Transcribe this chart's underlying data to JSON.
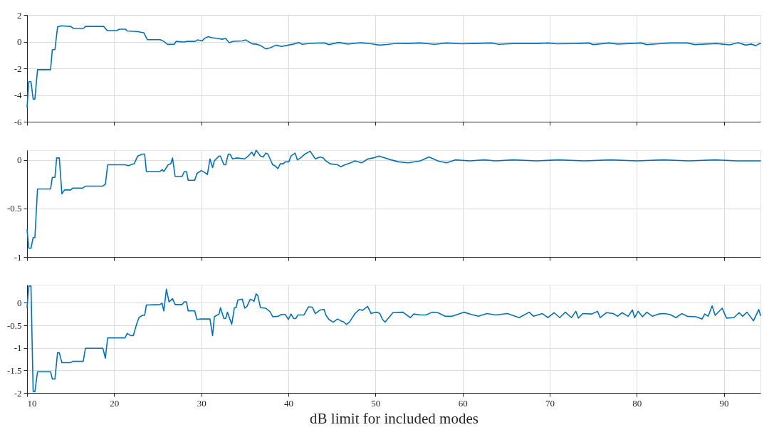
{
  "chart_data": [
    {
      "type": "line",
      "xlim": [
        10,
        94.2
      ],
      "xticks": [
        10,
        20,
        30,
        40,
        50,
        60,
        70,
        80,
        90
      ],
      "ylim": [
        -6,
        2
      ],
      "yticks": [
        -6,
        -4,
        -2,
        0,
        2
      ],
      "grid": true,
      "tick_labels": "y",
      "series": [
        {
          "color": "#0072bd",
          "x": [
            10.0,
            10.2,
            10.45,
            10.7,
            10.9,
            11.2,
            12.7,
            12.9,
            13.2,
            13.5,
            13.9,
            15.0,
            15.3,
            16.5,
            16.7,
            18.8,
            19.2,
            20.3,
            20.6,
            21.3,
            21.5,
            22.6,
            23.4,
            23.8,
            25.3,
            25.7,
            26.1,
            26.9,
            27.1,
            28.0,
            28.4,
            29.3,
            29.6,
            30.1,
            30.4,
            30.8,
            31.2,
            31.9,
            32.4,
            32.8,
            33.2,
            33.7,
            34.7,
            35.1,
            35.6,
            35.9,
            36.3,
            36.8,
            37.4,
            37.9,
            38.6,
            39.2,
            40.0,
            40.6,
            41.2,
            41.6,
            42.3,
            43.3,
            44.15,
            44.65,
            45.8,
            46.8,
            48.3,
            49.5,
            50.5,
            51.5,
            52.5,
            53.5,
            55.15,
            56.8,
            58.15,
            59.8,
            61.15,
            63.3,
            64.15,
            65.8,
            68.5,
            69.8,
            70.8,
            73.15,
            74.5,
            75.0,
            76.8,
            77.8,
            79.15,
            80.5,
            81.15,
            82.5,
            83.8,
            85.8,
            86.65,
            89.15,
            90.65,
            91.65,
            92.5,
            93.15,
            93.65,
            94.0,
            94.2
          ],
          "values": [
            -4.9,
            -3.0,
            -3.0,
            -4.3,
            -4.3,
            -2.1,
            -2.1,
            -0.6,
            -0.6,
            1.1,
            1.19,
            1.14,
            1.0,
            1.0,
            1.14,
            1.14,
            0.83,
            0.83,
            0.93,
            0.93,
            0.8,
            0.76,
            0.67,
            0.15,
            0.15,
            0.02,
            -0.2,
            -0.2,
            0.02,
            -0.03,
            0.02,
            0.02,
            0.13,
            0.05,
            0.26,
            0.37,
            0.29,
            0.24,
            0.18,
            0.24,
            -0.08,
            0.03,
            0.05,
            0.13,
            -0.07,
            -0.18,
            -0.18,
            -0.29,
            -0.54,
            -0.47,
            -0.26,
            -0.36,
            -0.26,
            -0.18,
            -0.07,
            -0.2,
            -0.15,
            -0.11,
            -0.1,
            -0.22,
            -0.06,
            -0.18,
            -0.08,
            -0.16,
            -0.26,
            -0.2,
            -0.12,
            -0.14,
            -0.1,
            -0.2,
            -0.1,
            -0.16,
            -0.14,
            -0.1,
            -0.2,
            -0.14,
            -0.14,
            -0.1,
            -0.16,
            -0.14,
            -0.1,
            -0.22,
            -0.1,
            -0.18,
            -0.14,
            -0.1,
            -0.22,
            -0.16,
            -0.1,
            -0.1,
            -0.22,
            -0.14,
            -0.24,
            -0.08,
            -0.26,
            -0.18,
            -0.3,
            -0.18,
            -0.14
          ]
        }
      ]
    },
    {
      "type": "line",
      "xlim": [
        10,
        94.2
      ],
      "xticks": [
        10,
        20,
        30,
        40,
        50,
        60,
        70,
        80,
        90
      ],
      "ylim": [
        -1,
        0.1
      ],
      "yticks": [
        -1,
        -0.5,
        0
      ],
      "grid": true,
      "tick_labels": "y",
      "series": [
        {
          "color": "#0072bd",
          "x": [
            10.0,
            10.2,
            10.45,
            10.7,
            10.9,
            11.2,
            12.7,
            12.9,
            13.2,
            13.4,
            13.7,
            14.0,
            14.3,
            15.0,
            15.25,
            16.4,
            16.7,
            18.7,
            19.0,
            19.25,
            21.25,
            21.65,
            21.9,
            22.3,
            22.7,
            23.0,
            23.2,
            23.5,
            23.7,
            25.25,
            25.5,
            25.7,
            26.2,
            26.5,
            26.7,
            27.0,
            27.8,
            28.05,
            28.3,
            28.5,
            29.25,
            29.5,
            30.0,
            30.4,
            30.7,
            31.0,
            31.3,
            31.5,
            32.05,
            32.2,
            32.6,
            32.8,
            33.1,
            33.3,
            33.6,
            34.05,
            35.0,
            35.5,
            35.8,
            36.05,
            36.3,
            36.8,
            37.1,
            37.4,
            37.65,
            38.2,
            38.45,
            38.8,
            39.07,
            39.4,
            39.65,
            40.05,
            40.3,
            40.77,
            41.04,
            41.4,
            41.9,
            42.5,
            43.1,
            43.65,
            44.0,
            44.3,
            44.8,
            45.65,
            46.0,
            46.5,
            47.15,
            47.65,
            48.4,
            49.15,
            49.75,
            50.4,
            51.1,
            51.8,
            52.65,
            53.75,
            55.15,
            56.15,
            57.15,
            58.15,
            59.15,
            60.8,
            62.5,
            63.8,
            65.8,
            68.5,
            71.0,
            74.0,
            77.0,
            80.0,
            83.0,
            86.0,
            89.0,
            91.5,
            94.2
          ],
          "values": [
            -0.72,
            -0.91,
            -0.91,
            -0.8,
            -0.8,
            -0.3,
            -0.3,
            -0.18,
            -0.18,
            0.02,
            0.02,
            -0.35,
            -0.31,
            -0.31,
            -0.29,
            -0.29,
            -0.27,
            -0.27,
            -0.25,
            -0.05,
            -0.05,
            -0.06,
            -0.05,
            -0.04,
            0.04,
            0.05,
            0.06,
            0.06,
            -0.12,
            -0.12,
            -0.1,
            -0.12,
            -0.05,
            -0.04,
            0.02,
            -0.17,
            -0.17,
            -0.12,
            -0.12,
            -0.21,
            -0.21,
            -0.14,
            -0.11,
            -0.13,
            -0.15,
            0.01,
            -0.08,
            -0.01,
            0.04,
            0.04,
            -0.05,
            -0.05,
            0.06,
            0.06,
            0.01,
            0.02,
            0.01,
            0.05,
            0.08,
            0.04,
            0.1,
            0.04,
            0.03,
            0.07,
            0.06,
            -0.05,
            -0.06,
            -0.09,
            -0.04,
            -0.04,
            -0.02,
            -0.02,
            0.04,
            0.07,
            0.0,
            0.02,
            0.06,
            0.09,
            0.01,
            0.03,
            0.02,
            -0.01,
            -0.04,
            -0.05,
            -0.07,
            -0.05,
            -0.03,
            -0.01,
            -0.03,
            0.01,
            0.02,
            0.04,
            0.02,
            0.0,
            -0.02,
            -0.03,
            -0.01,
            0.03,
            -0.01,
            -0.03,
            0.0,
            -0.01,
            0.0,
            -0.01,
            0.0,
            -0.01,
            0.0,
            -0.01,
            0.0,
            -0.01,
            0.0,
            -0.01,
            0.0,
            -0.01,
            -0.01
          ]
        }
      ]
    },
    {
      "type": "line",
      "xlim": [
        10,
        94.2
      ],
      "xticks": [
        10,
        20,
        30,
        40,
        50,
        60,
        70,
        80,
        90
      ],
      "ylim": [
        -2,
        0.4
      ],
      "yticks": [
        -2,
        -1.5,
        -1,
        -0.5,
        0
      ],
      "grid": true,
      "xlabel": "dB limit for included modes",
      "series": [
        {
          "color": "#0072bd",
          "x": [
            10.0,
            10.2,
            10.45,
            10.7,
            10.9,
            11.2,
            12.7,
            12.9,
            13.2,
            13.5,
            13.7,
            14.0,
            15.0,
            15.25,
            16.45,
            16.7,
            18.7,
            18.99,
            19.25,
            21.25,
            21.5,
            21.9,
            22.2,
            22.6,
            22.85,
            23.2,
            23.5,
            23.7,
            25.25,
            25.5,
            25.7,
            26.0,
            26.3,
            26.7,
            27.0,
            27.8,
            28.05,
            28.3,
            28.5,
            29.25,
            29.5,
            30.0,
            31.0,
            31.3,
            31.5,
            32.05,
            32.2,
            32.6,
            32.8,
            33.0,
            33.5,
            33.8,
            34.0,
            34.2,
            34.7,
            35.0,
            35.25,
            35.6,
            35.9,
            36.05,
            36.3,
            36.5,
            36.8,
            37.4,
            37.9,
            38.2,
            38.85,
            39.2,
            39.65,
            40.0,
            40.3,
            40.6,
            40.85,
            41.1,
            41.8,
            42.3,
            42.75,
            43.1,
            43.65,
            44.1,
            44.3,
            44.65,
            45.15,
            45.65,
            46.0,
            46.3,
            46.65,
            47.0,
            47.65,
            48.15,
            48.5,
            49.1,
            49.5,
            49.8,
            50.2,
            50.5,
            50.8,
            51.1,
            52.0,
            53.15,
            54.0,
            54.4,
            55.15,
            55.8,
            56.5,
            57.15,
            58.0,
            58.8,
            60.15,
            61.0,
            61.8,
            62.8,
            63.8,
            65.15,
            66.5,
            67.65,
            68.15,
            69.15,
            69.8,
            70.5,
            71.15,
            71.8,
            72.5,
            73.0,
            73.3,
            73.8,
            74.8,
            75.5,
            75.8,
            76.5,
            77.3,
            77.8,
            78.3,
            79.0,
            79.5,
            79.75,
            80.15,
            80.65,
            81.15,
            81.8,
            82.5,
            83.15,
            83.8,
            84.5,
            85.15,
            85.8,
            86.8,
            87.5,
            87.8,
            88.2,
            88.65,
            89.0,
            89.8,
            90.3,
            91.15,
            91.75,
            92.15,
            92.65,
            93.4,
            94.0,
            94.2
          ],
          "values": [
            -0.11,
            0.37,
            0.37,
            -1.97,
            -1.97,
            -1.53,
            -1.53,
            -1.69,
            -1.69,
            -1.11,
            -1.11,
            -1.33,
            -1.33,
            -1.3,
            -1.3,
            -1.01,
            -1.01,
            -1.23,
            -0.78,
            -0.78,
            -0.68,
            -0.73,
            -0.73,
            -0.46,
            -0.33,
            -0.28,
            -0.28,
            -0.05,
            -0.04,
            -0.01,
            -0.18,
            0.3,
            0.02,
            0.09,
            -0.04,
            -0.04,
            0.02,
            0.02,
            -0.18,
            -0.18,
            -0.37,
            -0.36,
            -0.36,
            -0.73,
            -0.31,
            -0.25,
            -0.11,
            -0.35,
            -0.35,
            -0.21,
            -0.48,
            -0.11,
            -0.11,
            0.06,
            0.08,
            -0.12,
            -0.08,
            0.07,
            0.06,
            0.03,
            0.2,
            0.15,
            -0.11,
            -0.12,
            -0.2,
            -0.31,
            -0.3,
            -0.26,
            -0.26,
            -0.37,
            -0.25,
            -0.35,
            -0.35,
            -0.27,
            -0.27,
            -0.09,
            -0.1,
            -0.24,
            -0.16,
            -0.15,
            -0.27,
            -0.37,
            -0.43,
            -0.36,
            -0.4,
            -0.42,
            -0.48,
            -0.43,
            -0.24,
            -0.15,
            -0.17,
            -0.08,
            -0.24,
            -0.22,
            -0.21,
            -0.24,
            -0.37,
            -0.43,
            -0.22,
            -0.21,
            -0.33,
            -0.25,
            -0.27,
            -0.27,
            -0.21,
            -0.22,
            -0.3,
            -0.3,
            -0.21,
            -0.26,
            -0.3,
            -0.24,
            -0.27,
            -0.24,
            -0.33,
            -0.21,
            -0.3,
            -0.24,
            -0.33,
            -0.22,
            -0.33,
            -0.21,
            -0.33,
            -0.19,
            -0.34,
            -0.24,
            -0.25,
            -0.19,
            -0.33,
            -0.22,
            -0.24,
            -0.3,
            -0.22,
            -0.3,
            -0.16,
            -0.33,
            -0.19,
            -0.31,
            -0.21,
            -0.3,
            -0.25,
            -0.24,
            -0.26,
            -0.33,
            -0.24,
            -0.3,
            -0.31,
            -0.36,
            -0.25,
            -0.3,
            -0.07,
            -0.28,
            -0.12,
            -0.34,
            -0.33,
            -0.22,
            -0.3,
            -0.21,
            -0.4,
            -0.15,
            -0.28
          ]
        }
      ]
    }
  ]
}
